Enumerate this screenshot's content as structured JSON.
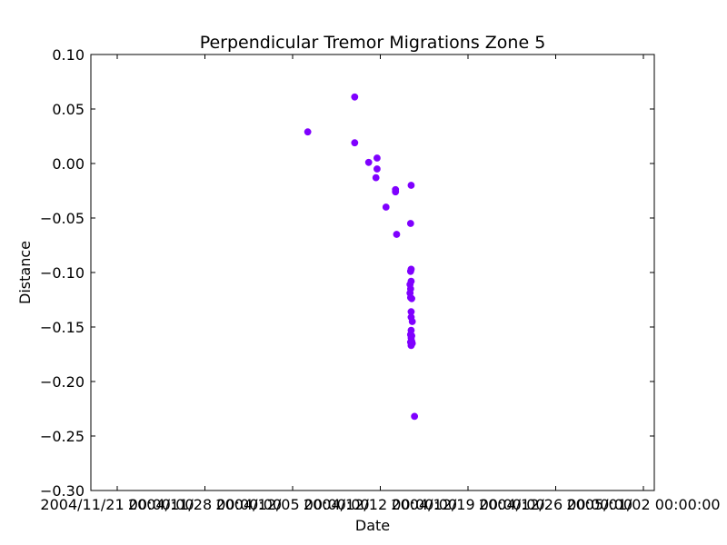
{
  "chart_data": {
    "type": "scatter",
    "title": "Perpendicular Tremor Migrations Zone 5",
    "xlabel": "Date",
    "ylabel": "Distance",
    "xlim": [
      "2004-11-21T00:00:00",
      "2005-01-02T00:00:00"
    ],
    "ylim": [
      -0.3,
      0.1
    ],
    "x_ticks": [
      "2004/11/21 00:00:00",
      "2004/11/28 00:00:00",
      "2004/12/05 00:00:00",
      "2004/12/12 00:00:00",
      "2004/12/19 00:00:00",
      "2004/12/26 00:00:00",
      "2005/01/02 00:00:00"
    ],
    "y_ticks": [
      "0.10",
      "0.05",
      "0.00",
      "−0.05",
      "−0.10",
      "−0.15",
      "−0.20",
      "−0.25",
      "−0.30"
    ],
    "grid": false,
    "marker_color": "#7f00ff",
    "points": [
      {
        "x": "2004-12-07T04:00",
        "y": 0.029
      },
      {
        "x": "2004-12-10T16:00",
        "y": 0.061
      },
      {
        "x": "2004-12-10T16:00",
        "y": 0.019
      },
      {
        "x": "2004-12-11T17:00",
        "y": 0.001
      },
      {
        "x": "2004-12-12T08:00",
        "y": 0.005
      },
      {
        "x": "2004-12-12T08:00",
        "y": -0.005
      },
      {
        "x": "2004-12-12T06:00",
        "y": -0.013
      },
      {
        "x": "2004-12-13T00:00",
        "y": -0.04
      },
      {
        "x": "2004-12-13T17:00",
        "y": -0.024
      },
      {
        "x": "2004-12-13T17:00",
        "y": -0.026
      },
      {
        "x": "2004-12-13T19:00",
        "y": -0.065
      },
      {
        "x": "2004-12-14T21:00",
        "y": -0.02
      },
      {
        "x": "2004-12-14T20:00",
        "y": -0.055
      },
      {
        "x": "2004-12-14T20:00",
        "y": -0.099
      },
      {
        "x": "2004-12-14T21:00",
        "y": -0.097
      },
      {
        "x": "2004-12-14T21:00",
        "y": -0.108
      },
      {
        "x": "2004-12-14T19:00",
        "y": -0.111
      },
      {
        "x": "2004-12-14T20:00",
        "y": -0.115
      },
      {
        "x": "2004-12-14T19:00",
        "y": -0.119
      },
      {
        "x": "2004-12-14T20:00",
        "y": -0.123
      },
      {
        "x": "2004-12-14T22:00",
        "y": -0.124
      },
      {
        "x": "2004-12-14T21:00",
        "y": -0.136
      },
      {
        "x": "2004-12-14T21:00",
        "y": -0.141
      },
      {
        "x": "2004-12-14T23:00",
        "y": -0.145
      },
      {
        "x": "2004-12-14T21:00",
        "y": -0.153
      },
      {
        "x": "2004-12-14T20:00",
        "y": -0.157
      },
      {
        "x": "2004-12-14T22:00",
        "y": -0.158
      },
      {
        "x": "2004-12-14T21:00",
        "y": -0.16
      },
      {
        "x": "2004-12-14T20:00",
        "y": -0.164
      },
      {
        "x": "2004-12-14T22:00",
        "y": -0.163
      },
      {
        "x": "2004-12-14T23:00",
        "y": -0.165
      },
      {
        "x": "2004-12-14T21:00",
        "y": -0.167
      },
      {
        "x": "2004-12-15T03:00",
        "y": -0.232
      }
    ]
  }
}
